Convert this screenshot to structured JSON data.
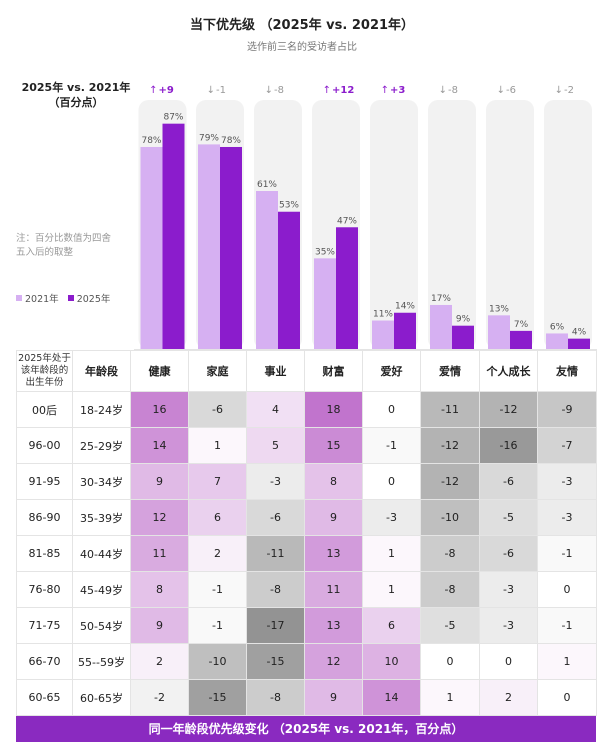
{
  "title": "当下优先级 （2025年 vs. 2021年）",
  "subtitle": "选作前三名的受访者占比",
  "chart_data": [
    {
      "type": "bar",
      "label_lines": [
        "2025年 vs. 2021年",
        "（百分点）"
      ],
      "note_lines": [
        "注：百分比数值为四舍",
        "五入后的取整"
      ],
      "categories": [
        "健康",
        "家庭",
        "事业",
        "财富",
        "爱好",
        "爱情",
        "个人成长",
        "友情"
      ],
      "series": [
        {
          "name": "2021年",
          "color": "#d6b0f2",
          "values": [
            78,
            79,
            61,
            35,
            11,
            17,
            13,
            6
          ]
        },
        {
          "name": "2025年",
          "color": "#8b1ccc",
          "values": [
            87,
            78,
            53,
            47,
            14,
            9,
            7,
            4
          ]
        }
      ],
      "changes": [
        "+9",
        "-1",
        "-8",
        "+12",
        "+3",
        "-8",
        "-6",
        "-2"
      ],
      "ylim": [
        0,
        100
      ]
    },
    {
      "type": "heatmap",
      "footer": "同一年龄段优先级变化 （2025年 vs. 2021年，百分点）",
      "row_header_1": [
        "2025年处于",
        "该年龄段的",
        "出生年份"
      ],
      "row_header_2": "年龄段",
      "columns": [
        "健康",
        "家庭",
        "事业",
        "财富",
        "爱好",
        "爱情",
        "个人成长",
        "友情"
      ],
      "birth_years": [
        "00后",
        "96-00",
        "91-95",
        "86-90",
        "81-85",
        "76-80",
        "71-75",
        "66-70",
        "60-65"
      ],
      "age_groups": [
        "18-24岁",
        "25-29岁",
        "30-34岁",
        "35-39岁",
        "40-44岁",
        "45-49岁",
        "50-54岁",
        "55--59岁",
        "60-65岁"
      ],
      "values": [
        [
          16,
          -6,
          4,
          18,
          0,
          -11,
          -12,
          -9
        ],
        [
          14,
          1,
          5,
          15,
          -1,
          -12,
          -16,
          -7
        ],
        [
          9,
          7,
          -3,
          8,
          0,
          -12,
          -6,
          -3
        ],
        [
          12,
          6,
          -6,
          9,
          -3,
          -10,
          -5,
          -3
        ],
        [
          11,
          2,
          -11,
          13,
          1,
          -8,
          -6,
          -1
        ],
        [
          8,
          -1,
          -8,
          11,
          1,
          -8,
          -3,
          0
        ],
        [
          9,
          -1,
          -17,
          13,
          6,
          -5,
          -3,
          -1
        ],
        [
          2,
          -10,
          -15,
          12,
          10,
          0,
          0,
          1
        ],
        [
          -2,
          -15,
          -8,
          9,
          14,
          1,
          2,
          0
        ]
      ]
    }
  ],
  "colors": {
    "positive": "#b65cc4",
    "negative": "#7a7a7a",
    "up": "#8b1ccc",
    "down": "#999999",
    "footer": "#8a2ac0"
  },
  "icons": {
    "up": "up-arrow-icon",
    "down": "down-arrow-icon"
  }
}
